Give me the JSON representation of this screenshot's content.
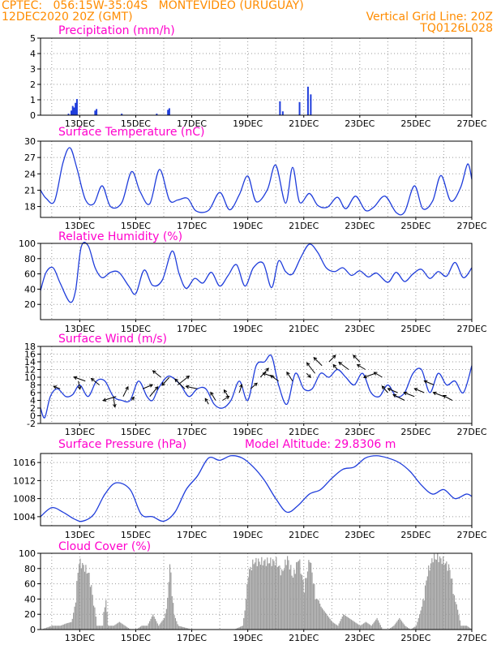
{
  "header": {
    "left_line1": "CPTEC:   056:15W-35:04S   MONTEVIDEO (URUGUAY)",
    "left_line2": "12DEC2020 20Z (GMT)",
    "right_line2": "Vertical Grid Line: 20Z",
    "right_line3": "TQ0126L028",
    "model_altitude": "Model Altitude: 29.8306 m"
  },
  "colors": {
    "header": "#ff8c00",
    "title": "#ff00cc",
    "line": "#1f3ddb",
    "bar": "#1f3ddb",
    "cloud": "#9c9c9c",
    "arrow": "#000000"
  },
  "x_axis": {
    "tick_labels": [
      "13DEC",
      "15DEC",
      "17DEC",
      "19DEC",
      "21DEC",
      "23DEC",
      "25DEC",
      "27DEC"
    ],
    "tick_days": [
      13,
      15,
      17,
      19,
      21,
      23,
      25,
      27
    ],
    "range_days": [
      11.6,
      27.0
    ]
  },
  "chart_data": [
    {
      "type": "bar",
      "title": "Precipitation (mm/h)",
      "ylim": [
        0,
        5
      ],
      "yticks": [
        "0",
        "1",
        "2",
        "3",
        "4",
        "5"
      ],
      "grid": true,
      "x_days": [
        12.6,
        12.7,
        12.75,
        12.8,
        12.85,
        12.9,
        13.55,
        13.6,
        14.5,
        15.75,
        16.15,
        16.2,
        20.15,
        20.25,
        20.85,
        21.15,
        21.25
      ],
      "values": [
        0.1,
        0.3,
        0.6,
        0.5,
        0.8,
        1.05,
        0.3,
        0.4,
        0.1,
        0.1,
        0.35,
        0.45,
        0.9,
        0.25,
        0.85,
        1.85,
        1.35
      ]
    },
    {
      "type": "line",
      "title": "Surface Temperature (nC)",
      "ylim": [
        16,
        30
      ],
      "yticks": [
        "18",
        "21",
        "24",
        "27",
        "30"
      ],
      "grid": true,
      "x_days": [
        11.6,
        11.8,
        12.1,
        12.4,
        12.65,
        12.9,
        13.2,
        13.5,
        13.8,
        14.1,
        14.5,
        14.85,
        15.15,
        15.5,
        15.85,
        16.2,
        16.5,
        16.85,
        17.15,
        17.6,
        18.0,
        18.35,
        18.7,
        19.0,
        19.3,
        19.7,
        20.0,
        20.35,
        20.6,
        20.85,
        21.2,
        21.5,
        21.85,
        22.2,
        22.5,
        22.85,
        23.2,
        23.5,
        23.9,
        24.3,
        24.6,
        24.95,
        25.25,
        25.6,
        25.9,
        26.25,
        26.6,
        26.85,
        27.0
      ],
      "values": [
        21,
        19.5,
        19,
        26,
        28.8,
        25,
        19.3,
        18.5,
        21.8,
        18,
        18.7,
        24.4,
        20.8,
        18.5,
        24.8,
        19.2,
        19.2,
        19.5,
        17.2,
        17.3,
        20.6,
        17.4,
        20.2,
        23.6,
        18.9,
        21.1,
        25.6,
        18.6,
        25.2,
        18.8,
        20.4,
        18.2,
        17.9,
        19.7,
        17.6,
        19.9,
        17.3,
        17.9,
        19.9,
        16.9,
        17.0,
        21.8,
        17.6,
        19.0,
        23.7,
        19.0,
        21.5,
        25.8,
        23.0
      ]
    },
    {
      "type": "line",
      "title": "Relative Humidity (%)",
      "ylim": [
        0,
        100
      ],
      "yticks": [
        "20",
        "40",
        "60",
        "80",
        "100"
      ],
      "grid": true,
      "x_days": [
        11.6,
        11.8,
        12.05,
        12.3,
        12.65,
        12.85,
        13.05,
        13.3,
        13.55,
        13.8,
        14.1,
        14.4,
        14.75,
        15.0,
        15.3,
        15.6,
        15.95,
        16.3,
        16.55,
        16.8,
        17.1,
        17.4,
        17.7,
        18.0,
        18.3,
        18.6,
        18.9,
        19.2,
        19.55,
        19.85,
        20.1,
        20.35,
        20.6,
        20.9,
        21.2,
        21.5,
        21.8,
        22.1,
        22.4,
        22.7,
        23.0,
        23.3,
        23.6,
        24.0,
        24.3,
        24.6,
        24.9,
        25.2,
        25.5,
        25.8,
        26.1,
        26.4,
        26.7,
        27.0
      ],
      "values": [
        38,
        62,
        68,
        48,
        23,
        38,
        95,
        97,
        68,
        55,
        62,
        62,
        44,
        34,
        65,
        45,
        52,
        90,
        60,
        41,
        54,
        48,
        62,
        44,
        58,
        72,
        44,
        68,
        74,
        42,
        77,
        63,
        60,
        82,
        99,
        88,
        68,
        63,
        68,
        58,
        64,
        56,
        61,
        49,
        62,
        50,
        60,
        66,
        54,
        63,
        57,
        75,
        55,
        68
      ]
    },
    {
      "type": "line",
      "title": "Surface Wind (m/s)",
      "ylim": [
        -2,
        18
      ],
      "yticks": [
        "-2",
        "0",
        "2",
        "4",
        "6",
        "8",
        "10",
        "12",
        "14",
        "16",
        "18"
      ],
      "grid": true,
      "x_days": [
        11.6,
        11.75,
        11.95,
        12.2,
        12.5,
        12.75,
        13.0,
        13.3,
        13.6,
        13.9,
        14.2,
        14.5,
        14.8,
        15.1,
        15.4,
        15.6,
        15.8,
        16.1,
        16.3,
        16.6,
        16.9,
        17.2,
        17.5,
        17.8,
        18.1,
        18.4,
        18.7,
        19.0,
        19.3,
        19.6,
        19.85,
        20.1,
        20.4,
        20.7,
        21.0,
        21.3,
        21.6,
        21.9,
        22.2,
        22.5,
        22.8,
        23.1,
        23.4,
        23.7,
        24.0,
        24.3,
        24.6,
        24.9,
        25.2,
        25.5,
        25.8,
        26.1,
        26.4,
        26.7,
        27.0
      ],
      "values": [
        2,
        -0.5,
        5,
        7,
        5,
        5.5,
        8,
        5,
        9,
        9,
        5,
        4,
        4,
        9,
        5,
        4,
        7,
        10,
        10,
        8,
        5,
        7,
        7,
        3,
        2,
        4,
        9,
        4,
        13,
        14,
        15.5,
        8,
        3,
        11,
        7,
        7,
        11,
        10,
        12,
        10,
        8,
        11,
        6,
        5,
        8,
        5,
        6,
        11,
        12,
        6,
        11,
        8,
        9,
        6,
        13
      ]
    },
    {
      "type": "line",
      "title": "Surface Pressure (hPa)",
      "ylim": [
        1002,
        1018
      ],
      "yticks": [
        "1004",
        "1008",
        "1012",
        "1016"
      ],
      "grid": true,
      "x_days": [
        11.6,
        12.0,
        12.4,
        12.8,
        13.1,
        13.5,
        13.9,
        14.3,
        14.8,
        15.2,
        15.6,
        16.0,
        16.4,
        16.8,
        17.2,
        17.6,
        18.0,
        18.4,
        18.8,
        19.2,
        19.6,
        20.0,
        20.4,
        20.8,
        21.2,
        21.6,
        22.0,
        22.4,
        22.8,
        23.2,
        23.6,
        24.0,
        24.4,
        24.8,
        25.2,
        25.6,
        26.0,
        26.4,
        26.8,
        27.0
      ],
      "values": [
        1004,
        1006,
        1005,
        1003.5,
        1003,
        1004.5,
        1009,
        1011.5,
        1010,
        1004.5,
        1004,
        1003,
        1005,
        1010,
        1013,
        1017,
        1016.5,
        1017.5,
        1017,
        1015,
        1012,
        1008,
        1005,
        1006.5,
        1009,
        1010,
        1012.5,
        1014.5,
        1015,
        1017,
        1017.5,
        1017,
        1016,
        1014,
        1011,
        1009,
        1010,
        1008,
        1009,
        1008.5
      ]
    },
    {
      "type": "area",
      "title": "Cloud Cover (%)",
      "ylim": [
        0,
        100
      ],
      "yticks": [
        "0",
        "20",
        "40",
        "60",
        "80",
        "100"
      ],
      "grid": true,
      "x_days": [
        11.6,
        12.0,
        12.3,
        12.5,
        12.7,
        12.8,
        12.95,
        13.1,
        13.3,
        13.45,
        13.6,
        13.8,
        13.9,
        14.0,
        14.2,
        14.4,
        14.6,
        14.8,
        15.0,
        15.2,
        15.4,
        15.6,
        15.8,
        15.9,
        16.0,
        16.1,
        16.2,
        16.35,
        16.5,
        17.0,
        17.5,
        18.0,
        18.5,
        18.8,
        18.9,
        19.0,
        19.2,
        19.5,
        20.0,
        20.2,
        20.4,
        20.6,
        20.8,
        21.0,
        21.2,
        21.4,
        21.6,
        21.8,
        22.0,
        22.2,
        22.4,
        22.6,
        22.8,
        23.0,
        23.2,
        23.4,
        23.6,
        23.8,
        24.0,
        24.2,
        24.4,
        24.6,
        24.8,
        25.0,
        25.2,
        25.4,
        25.6,
        25.8,
        26.0,
        26.2,
        26.4,
        26.6,
        26.8,
        27.0
      ],
      "values": [
        0,
        5,
        5,
        8,
        10,
        30,
        95,
        90,
        80,
        50,
        5,
        5,
        50,
        5,
        5,
        10,
        5,
        0,
        0,
        5,
        5,
        20,
        5,
        10,
        15,
        30,
        95,
        20,
        5,
        0,
        0,
        0,
        0,
        5,
        30,
        80,
        95,
        95,
        95,
        80,
        100,
        75,
        100,
        60,
        100,
        50,
        30,
        20,
        10,
        5,
        20,
        15,
        10,
        5,
        10,
        5,
        15,
        0,
        0,
        5,
        15,
        5,
        0,
        5,
        30,
        80,
        100,
        100,
        95,
        85,
        40,
        5,
        5,
        0
      ]
    }
  ],
  "wind_arrows": {
    "color": "#000000",
    "x_days": [
      12.3,
      12.95,
      13.2,
      13.7,
      14.2,
      14.3,
      14.55,
      14.85,
      15.25,
      15.5,
      15.9,
      16.2,
      16.5,
      16.75,
      17.2,
      17.6,
      17.85,
      18.1,
      18.3,
      18.7,
      19.1,
      19.45,
      19.95,
      20.1,
      20.6,
      21.1,
      21.4,
      21.65,
      21.9,
      22.2,
      22.6,
      23.0,
      23.2,
      23.55,
      23.8,
      24.0,
      24.35,
      24.6,
      24.95,
      25.3,
      25.65,
      26.0,
      26.3
    ],
    "y_values": [
      7,
      9,
      9,
      8,
      5,
      5,
      5,
      4,
      7,
      5,
      10,
      10,
      8,
      7,
      7,
      3,
      4,
      4,
      5,
      6,
      7,
      10,
      10,
      9,
      9,
      11,
      11,
      13,
      14,
      12,
      12,
      14,
      12,
      11,
      10,
      6,
      6,
      4,
      5,
      6,
      8,
      5,
      4
    ],
    "dx": [
      -8,
      2,
      -14,
      -10,
      2,
      -16,
      6,
      3,
      12,
      10,
      -10,
      -9,
      14,
      -12,
      -14,
      -4,
      -6,
      8,
      -5,
      3,
      8,
      10,
      -14,
      -10,
      -7,
      5,
      -10,
      -10,
      8,
      -5,
      -12,
      -8,
      -10,
      -14,
      -10,
      -7,
      -12,
      -14,
      -13,
      -12,
      -12,
      -13,
      -11
    ],
    "dy": [
      -3,
      10,
      -5,
      -8,
      13,
      5,
      -12,
      -4,
      -5,
      -12,
      -8,
      10,
      -11,
      -12,
      -3,
      -7,
      -10,
      -5,
      -8,
      -10,
      -7,
      -11,
      -5,
      -7,
      -11,
      5,
      -13,
      -10,
      -8,
      -6,
      -9,
      -8,
      -6,
      5,
      -6,
      -8,
      -5,
      -7,
      -5,
      -5,
      -5,
      -5,
      -6
    ]
  }
}
